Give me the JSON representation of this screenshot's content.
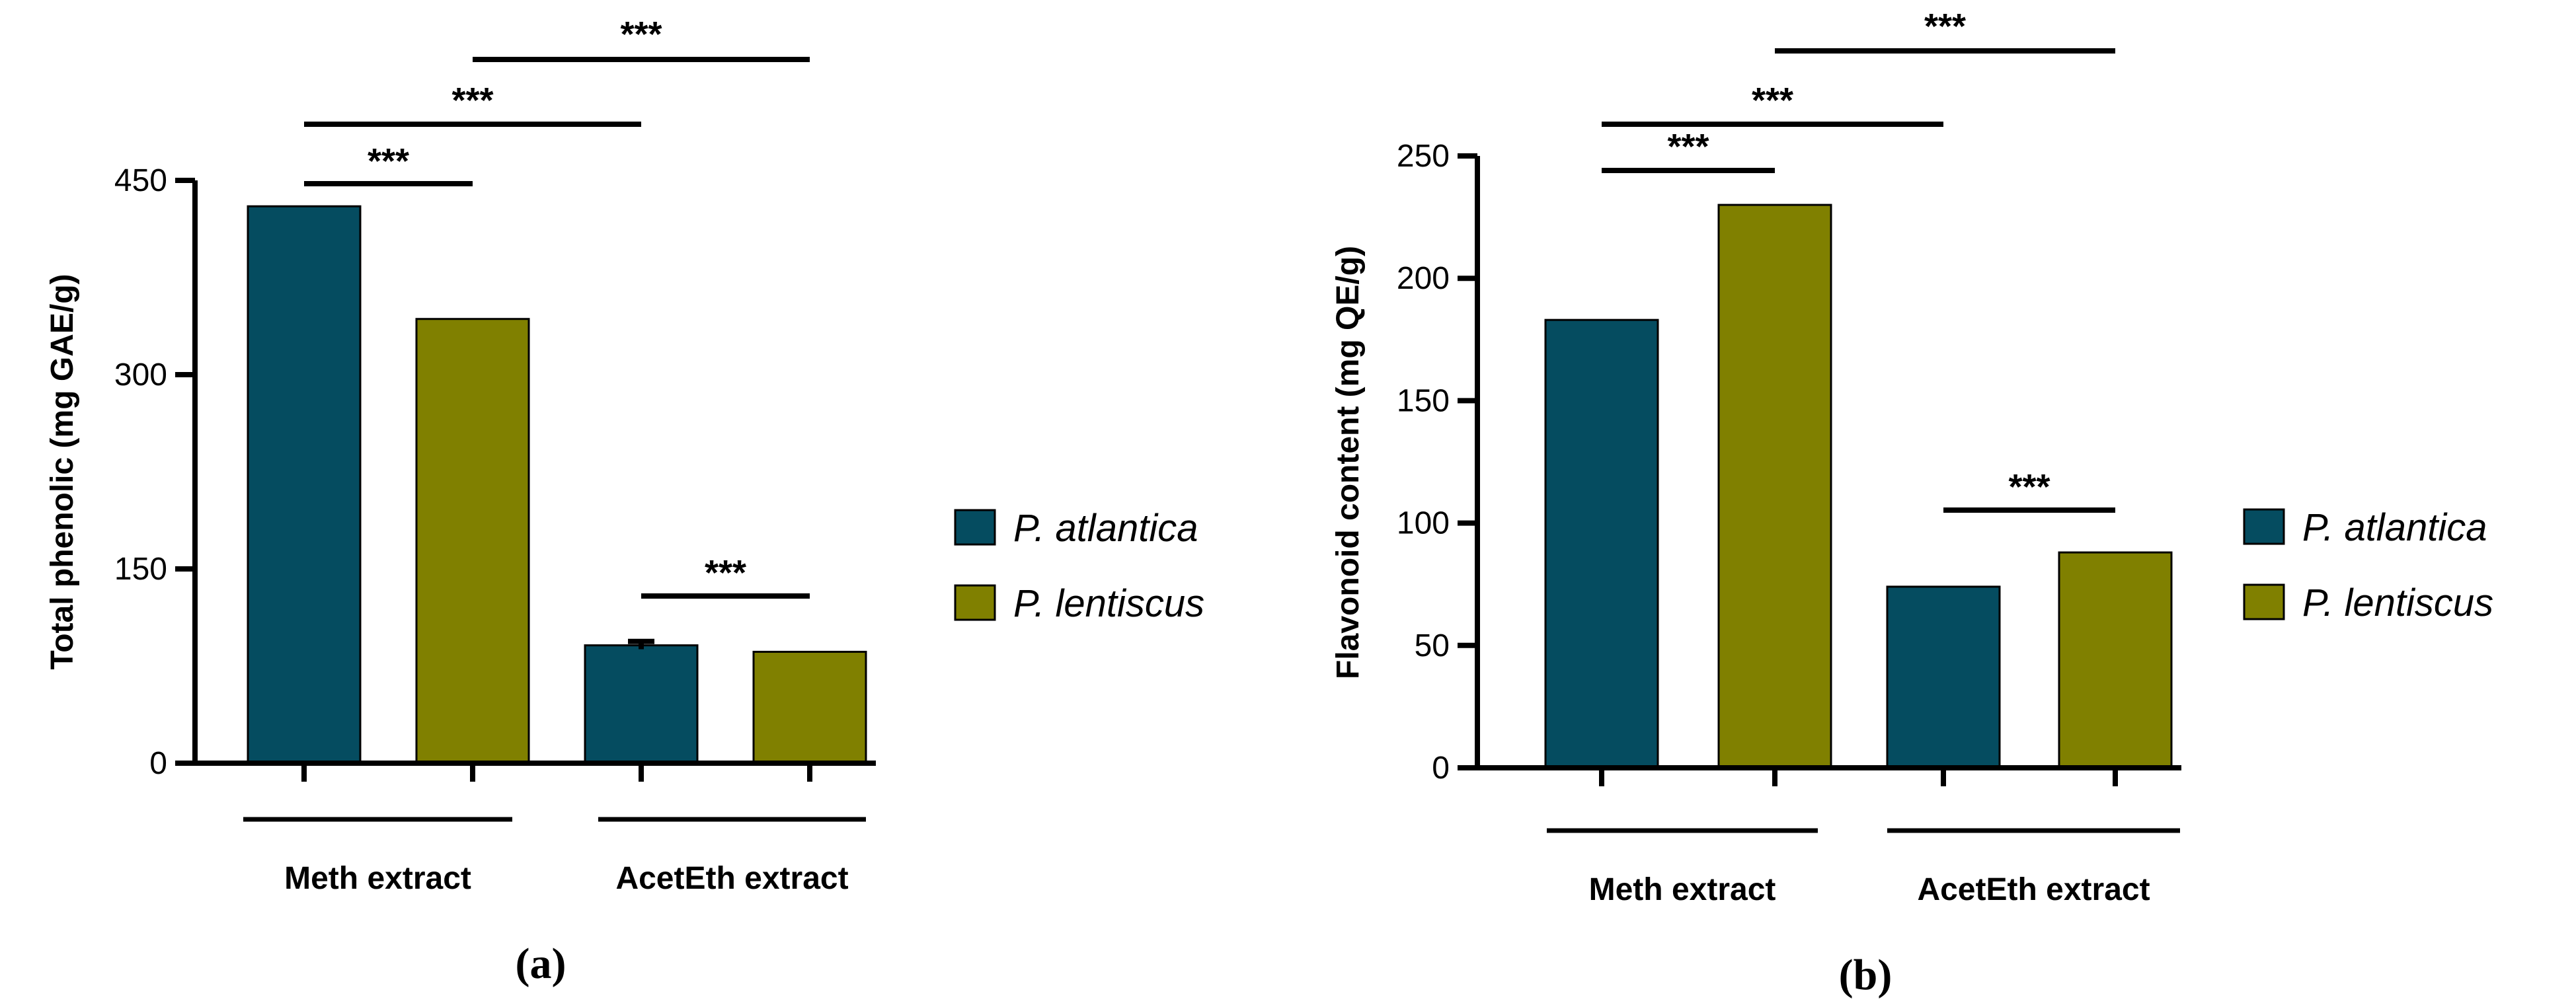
{
  "colors": {
    "p_atlantica": "#054c60",
    "p_lentiscus": "#808000"
  },
  "chart_data": [
    {
      "type": "bar",
      "panel_label": "(a)",
      "ylabel": "Total phenolic (mg GAE/g)",
      "xlabel": "",
      "ylim": [
        0,
        450
      ],
      "yticks": [
        "0",
        "150",
        "300",
        "450"
      ],
      "categories": [
        "Meth extract",
        "AcetEth extract"
      ],
      "series": [
        {
          "name": "P. atlantica",
          "values": [
            430,
            91
          ],
          "errors": [
            0,
            3
          ]
        },
        {
          "name": "P. lentiscus",
          "values": [
            343,
            86
          ],
          "errors": [
            0,
            0
          ]
        }
      ],
      "legend": [
        "P. atlantica",
        "P. lentiscus"
      ],
      "legend_position": "right",
      "significance": [
        {
          "from": "Meth extract / P. atlantica",
          "to": "Meth extract / P. lentiscus",
          "label": "***"
        },
        {
          "from": "Meth extract / P. atlantica",
          "to": "AcetEth extract / P. atlantica",
          "label": "***"
        },
        {
          "from": "Meth extract / P. lentiscus",
          "to": "AcetEth extract / P. lentiscus",
          "label": "***"
        },
        {
          "from": "AcetEth extract / P. atlantica",
          "to": "AcetEth extract / P. lentiscus",
          "label": "***"
        }
      ]
    },
    {
      "type": "bar",
      "panel_label": "(b)",
      "ylabel": "Flavonoid content (mg QE/g)",
      "xlabel": "",
      "ylim": [
        0,
        250
      ],
      "yticks": [
        "0",
        "50",
        "100",
        "150",
        "200",
        "250"
      ],
      "categories": [
        "Meth extract",
        "AcetEth extract"
      ],
      "series": [
        {
          "name": "P. atlantica",
          "values": [
            183,
            74
          ],
          "errors": [
            0,
            0
          ]
        },
        {
          "name": "P. lentiscus",
          "values": [
            230,
            88
          ],
          "errors": [
            0,
            0
          ]
        }
      ],
      "legend": [
        "P. atlantica",
        "P. lentiscus"
      ],
      "legend_position": "right",
      "significance": [
        {
          "from": "Meth extract / P. atlantica",
          "to": "Meth extract / P. lentiscus",
          "label": "***"
        },
        {
          "from": "Meth extract / P. atlantica",
          "to": "AcetEth extract / P. atlantica",
          "label": "***"
        },
        {
          "from": "Meth extract / P. lentiscus",
          "to": "AcetEth extract / P. lentiscus",
          "label": "***"
        },
        {
          "from": "AcetEth extract / P. atlantica",
          "to": "AcetEth extract / P. lentiscus",
          "label": "***"
        }
      ]
    }
  ]
}
